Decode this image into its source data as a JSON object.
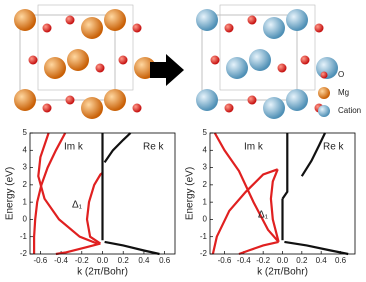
{
  "structure_legend": {
    "items": [
      "O",
      "Mg",
      "Cation"
    ]
  },
  "chart_data": [
    {
      "type": "line",
      "xlabel": "k (2π/Bohr)",
      "ylabel": "Energy (eV)",
      "xlim": [
        -0.7,
        0.7
      ],
      "ylim": [
        -2,
        5
      ],
      "xticks": [
        -0.6,
        -0.4,
        -0.2,
        {
          "value": 0,
          "label": "0.0"
        },
        0.2,
        0.4,
        0.6
      ],
      "yticks": [
        -2,
        -1,
        0,
        1,
        2,
        3,
        4,
        5
      ],
      "annotations": [
        "Im k",
        "Re k",
        "Δ₁"
      ],
      "series": [
        {
          "color": "#e02020",
          "x": [
            -0.52,
            -0.6,
            -0.62,
            -0.56,
            -0.42,
            -0.22,
            -0.05
          ],
          "values": [
            5,
            3.6,
            2.5,
            1.2,
            0,
            -1,
            -1.4
          ]
        },
        {
          "color": "#e02020",
          "x": [
            -0.36,
            -0.45,
            -0.53,
            -0.59,
            -0.63,
            -0.65,
            -0.66,
            -0.66
          ],
          "values": [
            5,
            4,
            3,
            2,
            1,
            0,
            -1,
            -2
          ]
        },
        {
          "color": "#e02020",
          "x": [
            -0.02,
            -0.12,
            -0.15,
            -0.13,
            -0.08,
            -0.02,
            0
          ],
          "values": [
            -1.4,
            -1,
            0,
            1,
            2,
            2.6,
            2.7
          ]
        },
        {
          "color": "#e02020",
          "x": [
            -0.02,
            -0.15,
            -0.35,
            -0.45
          ],
          "values": [
            -1.4,
            -1.6,
            -1.9,
            -2
          ]
        },
        {
          "color": "#111111",
          "x": [
            0,
            0
          ],
          "values": [
            -1.2,
            5
          ]
        },
        {
          "color": "#111111",
          "x": [
            0.02,
            0.1,
            0.2,
            0.27
          ],
          "values": [
            3.3,
            4,
            4.6,
            5
          ]
        },
        {
          "color": "#111111",
          "x": [
            0.02,
            0.2,
            0.4,
            0.55
          ],
          "values": [
            -1.3,
            -1.5,
            -1.8,
            -2
          ]
        }
      ]
    },
    {
      "type": "line",
      "xlabel": "k (2π/Bohr)",
      "ylabel": "Energy (eV)",
      "xlim": [
        -0.75,
        0.75
      ],
      "ylim": [
        -2,
        5
      ],
      "xticks": [
        -0.6,
        -0.4,
        -0.2,
        {
          "value": 0,
          "label": "0.0"
        },
        0.2,
        0.4,
        0.6
      ],
      "yticks": [
        -2,
        -1,
        0,
        1,
        2,
        3,
        4,
        5
      ],
      "annotations": [
        "Im k",
        "Re k",
        "Δ₁"
      ],
      "series": [
        {
          "color": "#e02020",
          "x": [
            -0.7,
            -0.6,
            -0.45,
            -0.3,
            -0.15,
            -0.04
          ],
          "values": [
            5,
            4,
            2.8,
            1,
            -0.6,
            -1.3
          ]
        },
        {
          "color": "#e02020",
          "x": [
            -0.72,
            -0.68,
            -0.55,
            -0.38,
            -0.2,
            -0.05
          ],
          "values": [
            -2,
            -1,
            0.5,
            1.6,
            2.6,
            2.9
          ]
        },
        {
          "color": "#e02020",
          "x": [
            -0.05,
            -0.1,
            -0.12,
            -0.1,
            -0.04
          ],
          "values": [
            2.9,
            2.2,
            1.2,
            0,
            -1.3
          ]
        },
        {
          "color": "#e02020",
          "x": [
            -0.04,
            -0.2,
            -0.35,
            -0.45
          ],
          "values": [
            -1.3,
            -1.5,
            -1.8,
            -2
          ]
        },
        {
          "color": "#111111",
          "x": [
            0,
            0
          ],
          "values": [
            -1.2,
            1.2
          ]
        },
        {
          "color": "#111111",
          "x": [
            0,
            0.05,
            0.05
          ],
          "values": [
            1.2,
            1.6,
            5
          ]
        },
        {
          "color": "#111111",
          "x": [
            0.2,
            0.3,
            0.38,
            0.44
          ],
          "values": [
            2.5,
            3.4,
            4.3,
            5
          ]
        },
        {
          "color": "#111111",
          "x": [
            0.02,
            0.25,
            0.5,
            0.68
          ],
          "values": [
            -1.3,
            -1.5,
            -1.8,
            -2
          ]
        }
      ]
    }
  ]
}
